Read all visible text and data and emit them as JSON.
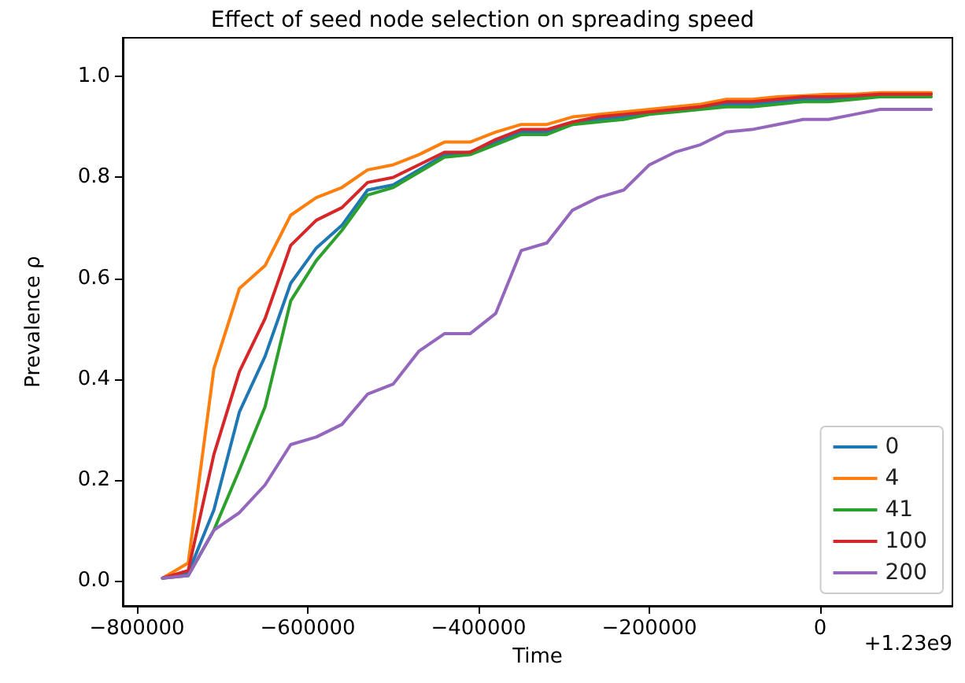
{
  "chart_data": {
    "type": "line",
    "title": "Effect of seed node selection on spreading speed",
    "xlabel": "Time",
    "ylabel": "Prevalence ρ",
    "annotations": [
      "+1.23e9"
    ],
    "x": [
      -770000,
      -740000,
      -710000,
      -680000,
      -650000,
      -620000,
      -590000,
      -560000,
      -530000,
      -500000,
      -470000,
      -440000,
      -410000,
      -380000,
      -350000,
      -320000,
      -290000,
      -260000,
      -230000,
      -200000,
      -170000,
      -140000,
      -110000,
      -80000,
      -50000,
      -20000,
      10000,
      40000,
      70000,
      100000,
      130000
    ],
    "series": [
      {
        "name": "0",
        "color": "#1f77b4",
        "values": [
          0.005,
          0.015,
          0.14,
          0.335,
          0.445,
          0.59,
          0.66,
          0.705,
          0.775,
          0.785,
          0.815,
          0.845,
          0.85,
          0.87,
          0.89,
          0.89,
          0.905,
          0.915,
          0.92,
          0.93,
          0.935,
          0.94,
          0.945,
          0.945,
          0.95,
          0.955,
          0.955,
          0.96,
          0.96,
          null,
          null
        ]
      },
      {
        "name": "4",
        "color": "#ff7f0e",
        "values": [
          0.005,
          0.035,
          0.42,
          0.58,
          0.625,
          0.725,
          0.76,
          0.78,
          0.815,
          0.825,
          0.845,
          0.87,
          0.87,
          0.89,
          0.905,
          0.905,
          0.92,
          0.925,
          0.93,
          0.935,
          0.94,
          0.945,
          0.955,
          0.955,
          0.96,
          0.962,
          0.965,
          0.965,
          0.968,
          0.968,
          0.968
        ]
      },
      {
        "name": "41",
        "color": "#2ca02c",
        "values": [
          0.005,
          0.01,
          0.1,
          0.22,
          0.345,
          0.555,
          0.635,
          0.695,
          0.765,
          0.78,
          0.81,
          0.84,
          0.845,
          0.865,
          0.885,
          0.885,
          0.905,
          0.91,
          0.915,
          0.925,
          0.93,
          0.935,
          0.94,
          0.94,
          0.945,
          0.95,
          0.95,
          0.955,
          0.96,
          0.96,
          0.96
        ]
      },
      {
        "name": "100",
        "color": "#d62728",
        "values": [
          0.005,
          0.02,
          0.25,
          0.415,
          0.52,
          0.665,
          0.715,
          0.74,
          0.79,
          0.8,
          0.825,
          0.85,
          0.85,
          0.875,
          0.895,
          0.895,
          0.91,
          0.92,
          0.925,
          0.93,
          0.935,
          0.94,
          0.95,
          0.95,
          0.955,
          0.96,
          0.96,
          0.962,
          0.965,
          0.965,
          0.965
        ]
      },
      {
        "name": "200",
        "color": "#9467bd",
        "values": [
          0.005,
          0.01,
          0.1,
          0.135,
          0.19,
          0.27,
          0.285,
          0.31,
          0.37,
          0.39,
          0.455,
          0.49,
          0.49,
          0.53,
          0.655,
          0.67,
          0.735,
          0.76,
          0.775,
          0.825,
          0.85,
          0.865,
          0.89,
          0.895,
          0.905,
          0.915,
          0.915,
          0.925,
          0.935,
          0.935,
          0.935
        ]
      }
    ],
    "xlim": [
      -816600,
      154800
    ],
    "xticks": [
      {
        "value": -800000,
        "label": "−800000"
      },
      {
        "value": -600000,
        "label": "−600000"
      },
      {
        "value": -400000,
        "label": "−400000"
      },
      {
        "value": -200000,
        "label": "−200000"
      },
      0
    ],
    "ylim": [
      -0.05,
      1.077
    ],
    "yticks": [
      {
        "value": 0,
        "label": "0.0"
      },
      {
        "value": 0.2,
        "label": "0.2"
      },
      {
        "value": 0.4,
        "label": "0.4"
      },
      {
        "value": 0.6,
        "label": "0.6"
      },
      {
        "value": 0.8,
        "label": "0.8"
      },
      {
        "value": 1,
        "label": "1.0"
      }
    ],
    "legend": "bottom right",
    "grid": false,
    "marker": "none",
    "line_style": "solid"
  }
}
